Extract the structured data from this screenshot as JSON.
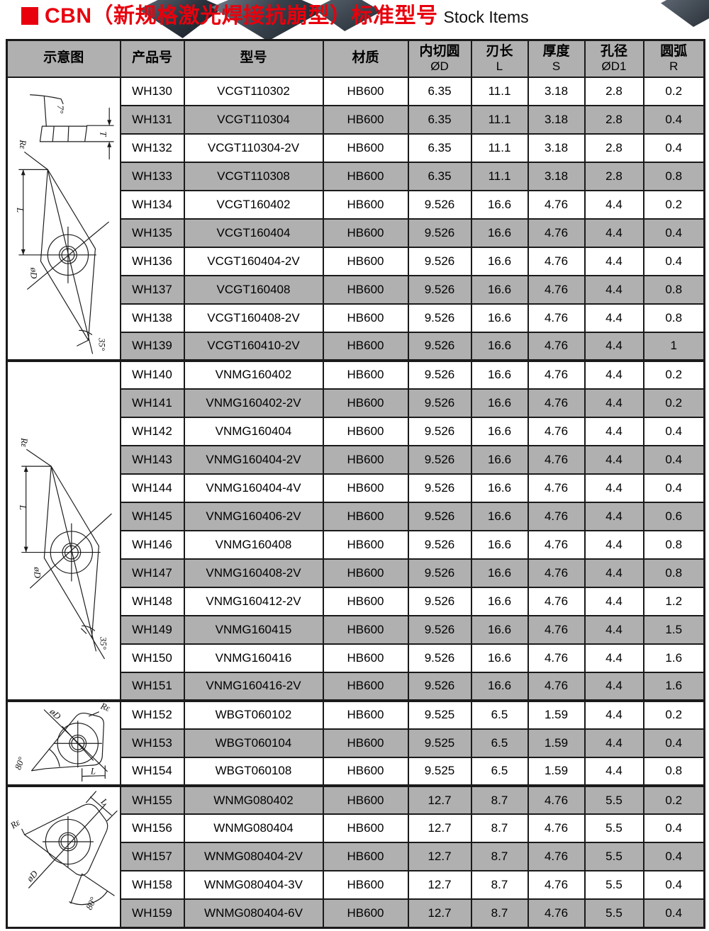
{
  "header": {
    "title_cn": "CBN（新规格激光焊接抗崩型）标准型号",
    "title_en": "Stock Items"
  },
  "colors": {
    "accent_red": "#e8000d",
    "row_gray": "#b0b0b0",
    "border_black": "#1a1a1a"
  },
  "table": {
    "columns": [
      {
        "label": "示意图",
        "sub": ""
      },
      {
        "label": "产品号",
        "sub": ""
      },
      {
        "label": "型号",
        "sub": ""
      },
      {
        "label": "材质",
        "sub": ""
      },
      {
        "label": "内切圆",
        "sub": "ØD"
      },
      {
        "label": "刃长",
        "sub": "L"
      },
      {
        "label": "厚度",
        "sub": "S"
      },
      {
        "label": "孔径",
        "sub": "ØD1"
      },
      {
        "label": "圆弧",
        "sub": "R"
      }
    ],
    "groups": [
      {
        "diagram": "vcgt-35deg-insert-diagram",
        "diagram_labels": {
          "tilt": "7°",
          "t": "T",
          "re": "Rε",
          "l": "L",
          "od": "øD",
          "angle": "35°"
        },
        "rows": [
          [
            "WH130",
            "VCGT110302",
            "HB600",
            "6.35",
            "11.1",
            "3.18",
            "2.8",
            "0.2"
          ],
          [
            "WH131",
            "VCGT110304",
            "HB600",
            "6.35",
            "11.1",
            "3.18",
            "2.8",
            "0.4"
          ],
          [
            "WH132",
            "VCGT110304-2V",
            "HB600",
            "6.35",
            "11.1",
            "3.18",
            "2.8",
            "0.4"
          ],
          [
            "WH133",
            "VCGT110308",
            "HB600",
            "6.35",
            "11.1",
            "3.18",
            "2.8",
            "0.8"
          ],
          [
            "WH134",
            "VCGT160402",
            "HB600",
            "9.526",
            "16.6",
            "4.76",
            "4.4",
            "0.2"
          ],
          [
            "WH135",
            "VCGT160404",
            "HB600",
            "9.526",
            "16.6",
            "4.76",
            "4.4",
            "0.4"
          ],
          [
            "WH136",
            "VCGT160404-2V",
            "HB600",
            "9.526",
            "16.6",
            "4.76",
            "4.4",
            "0.4"
          ],
          [
            "WH137",
            "VCGT160408",
            "HB600",
            "9.526",
            "16.6",
            "4.76",
            "4.4",
            "0.8"
          ],
          [
            "WH138",
            "VCGT160408-2V",
            "HB600",
            "9.526",
            "16.6",
            "4.76",
            "4.4",
            "0.8"
          ],
          [
            "WH139",
            "VCGT160410-2V",
            "HB600",
            "9.526",
            "16.6",
            "4.76",
            "4.4",
            "1"
          ]
        ]
      },
      {
        "diagram": "vnmg-35deg-insert-diagram",
        "diagram_labels": {
          "re": "Rε",
          "l": "L",
          "od": "øD",
          "angle": "35°"
        },
        "rows": [
          [
            "WH140",
            "VNMG160402",
            "HB600",
            "9.526",
            "16.6",
            "4.76",
            "4.4",
            "0.2"
          ],
          [
            "WH141",
            "VNMG160402-2V",
            "HB600",
            "9.526",
            "16.6",
            "4.76",
            "4.4",
            "0.2"
          ],
          [
            "WH142",
            "VNMG160404",
            "HB600",
            "9.526",
            "16.6",
            "4.76",
            "4.4",
            "0.4"
          ],
          [
            "WH143",
            "VNMG160404-2V",
            "HB600",
            "9.526",
            "16.6",
            "4.76",
            "4.4",
            "0.4"
          ],
          [
            "WH144",
            "VNMG160404-4V",
            "HB600",
            "9.526",
            "16.6",
            "4.76",
            "4.4",
            "0.4"
          ],
          [
            "WH145",
            "VNMG160406-2V",
            "HB600",
            "9.526",
            "16.6",
            "4.76",
            "4.4",
            "0.6"
          ],
          [
            "WH146",
            "VNMG160408",
            "HB600",
            "9.526",
            "16.6",
            "4.76",
            "4.4",
            "0.8"
          ],
          [
            "WH147",
            "VNMG160408-2V",
            "HB600",
            "9.526",
            "16.6",
            "4.76",
            "4.4",
            "0.8"
          ],
          [
            "WH148",
            "VNMG160412-2V",
            "HB600",
            "9.526",
            "16.6",
            "4.76",
            "4.4",
            "1.2"
          ],
          [
            "WH149",
            "VNMG160415",
            "HB600",
            "9.526",
            "16.6",
            "4.76",
            "4.4",
            "1.5"
          ],
          [
            "WH150",
            "VNMG160416",
            "HB600",
            "9.526",
            "16.6",
            "4.76",
            "4.4",
            "1.6"
          ],
          [
            "WH151",
            "VNMG160416-2V",
            "HB600",
            "9.526",
            "16.6",
            "4.76",
            "4.4",
            "1.6"
          ]
        ]
      },
      {
        "diagram": "wbgt-80deg-insert-diagram",
        "diagram_labels": {
          "re": "Rε",
          "l": "L",
          "od": "øD",
          "angle": "80°"
        },
        "rows": [
          [
            "WH152",
            "WBGT060102",
            "HB600",
            "9.525",
            "6.5",
            "1.59",
            "4.4",
            "0.2"
          ],
          [
            "WH153",
            "WBGT060104",
            "HB600",
            "9.525",
            "6.5",
            "1.59",
            "4.4",
            "0.4"
          ],
          [
            "WH154",
            "WBGT060108",
            "HB600",
            "9.525",
            "6.5",
            "1.59",
            "4.4",
            "0.8"
          ]
        ]
      },
      {
        "diagram": "wnmg-80deg-insert-diagram",
        "diagram_labels": {
          "re": "Rε",
          "l": "L",
          "od": "øD",
          "angle": "80°"
        },
        "rows": [
          [
            "WH155",
            "WNMG080402",
            "HB600",
            "12.7",
            "8.7",
            "4.76",
            "5.5",
            "0.2"
          ],
          [
            "WH156",
            "WNMG080404",
            "HB600",
            "12.7",
            "8.7",
            "4.76",
            "5.5",
            "0.4"
          ],
          [
            "WH157",
            "WNMG080404-2V",
            "HB600",
            "12.7",
            "8.7",
            "4.76",
            "5.5",
            "0.4"
          ],
          [
            "WH158",
            "WNMG080404-3V",
            "HB600",
            "12.7",
            "8.7",
            "4.76",
            "5.5",
            "0.4"
          ],
          [
            "WH159",
            "WNMG080404-6V",
            "HB600",
            "12.7",
            "8.7",
            "4.76",
            "5.5",
            "0.4"
          ]
        ]
      }
    ]
  }
}
